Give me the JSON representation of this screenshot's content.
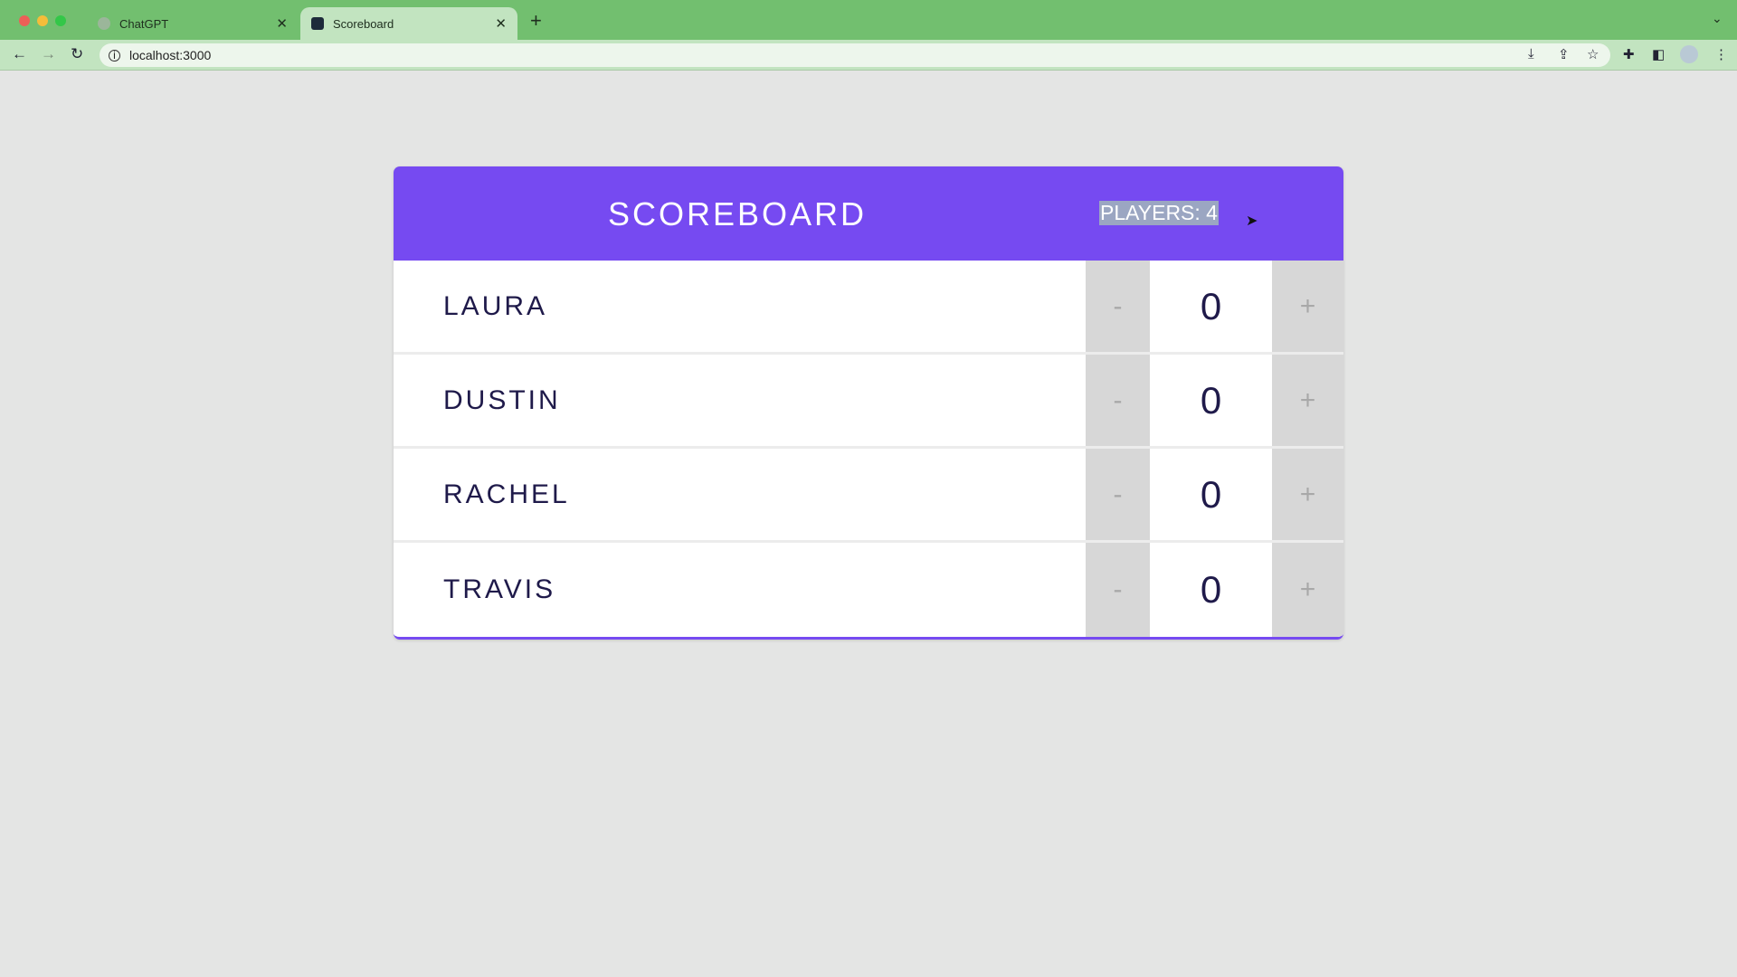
{
  "browser": {
    "tabs": [
      {
        "label": "ChatGPT",
        "icon": "chatgpt-icon"
      },
      {
        "label": "Scoreboard",
        "icon": "react-icon",
        "active": true
      }
    ],
    "url": "localhost:3000"
  },
  "scoreboard": {
    "title": "SCOREBOARD",
    "players_label": "PLAYERS: 4",
    "minus_label": "-",
    "plus_label": "+",
    "players": [
      {
        "name": "LAURA",
        "score": "0"
      },
      {
        "name": "DUSTIN",
        "score": "0"
      },
      {
        "name": "RACHEL",
        "score": "0"
      },
      {
        "name": "TRAVIS",
        "score": "0"
      }
    ]
  },
  "colors": {
    "header": "#764af1",
    "text": "#1f1a4a",
    "chrome": "#72bf6f"
  }
}
